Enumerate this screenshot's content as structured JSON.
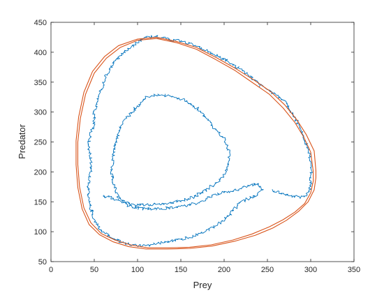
{
  "chart_data": {
    "type": "line",
    "title": "",
    "xlabel": "Prey",
    "ylabel": "Predator",
    "xlim": [
      0,
      350
    ],
    "ylim": [
      50,
      450
    ],
    "xticks": [
      0,
      50,
      100,
      150,
      200,
      250,
      300,
      350
    ],
    "yticks": [
      50,
      100,
      150,
      200,
      250,
      300,
      350,
      400,
      450
    ],
    "grid": false,
    "legend": "none",
    "series": [
      {
        "color": "#0072BD",
        "style": "noisy",
        "values": [
          [
            255,
            170
          ],
          [
            275,
            160
          ],
          [
            293,
            157
          ],
          [
            299,
            170
          ],
          [
            301,
            200
          ],
          [
            298,
            235
          ],
          [
            290,
            265
          ],
          [
            282,
            290
          ],
          [
            270,
            318
          ],
          [
            256,
            333
          ],
          [
            242,
            345
          ],
          [
            225,
            365
          ],
          [
            210,
            380
          ],
          [
            195,
            392
          ],
          [
            180,
            402
          ],
          [
            165,
            412
          ],
          [
            150,
            418
          ],
          [
            135,
            422
          ],
          [
            120,
            427
          ],
          [
            108,
            424
          ],
          [
            95,
            412
          ],
          [
            82,
            398
          ],
          [
            72,
            382
          ],
          [
            64,
            362
          ],
          [
            58,
            338
          ],
          [
            54,
            318
          ],
          [
            50,
            298
          ],
          [
            50,
            280
          ],
          [
            46,
            262
          ],
          [
            43,
            242
          ],
          [
            46,
            222
          ],
          [
            46,
            200
          ],
          [
            44,
            180
          ],
          [
            42,
            160
          ],
          [
            46,
            140
          ],
          [
            50,
            120
          ],
          [
            58,
            102
          ],
          [
            72,
            88
          ],
          [
            88,
            80
          ],
          [
            105,
            76
          ],
          [
            122,
            80
          ],
          [
            140,
            85
          ],
          [
            160,
            90
          ],
          [
            178,
            100
          ],
          [
            192,
            112
          ],
          [
            205,
            125
          ],
          [
            212,
            138
          ],
          [
            220,
            150
          ],
          [
            235,
            160
          ],
          [
            245,
            170
          ],
          [
            238,
            180
          ],
          [
            225,
            175
          ],
          [
            210,
            168
          ],
          [
            196,
            165
          ],
          [
            183,
            158
          ],
          [
            170,
            148
          ],
          [
            155,
            143
          ],
          [
            140,
            140
          ],
          [
            124,
            138
          ],
          [
            106,
            138
          ],
          [
            90,
            143
          ],
          [
            78,
            158
          ],
          [
            72,
            180
          ],
          [
            70,
            205
          ],
          [
            72,
            230
          ],
          [
            76,
            256
          ],
          [
            82,
            280
          ],
          [
            92,
            298
          ],
          [
            110,
            325
          ],
          [
            125,
            330
          ],
          [
            140,
            325
          ],
          [
            155,
            320
          ],
          [
            170,
            305
          ],
          [
            180,
            290
          ],
          [
            190,
            270
          ],
          [
            200,
            255
          ],
          [
            205,
            238
          ],
          [
            206,
            215
          ],
          [
            202,
            198
          ],
          [
            192,
            183
          ],
          [
            180,
            170
          ],
          [
            165,
            158
          ],
          [
            150,
            152
          ],
          [
            135,
            148
          ],
          [
            118,
            145
          ],
          [
            100,
            144
          ],
          [
            88,
            148
          ],
          [
            72,
            155
          ],
          [
            60,
            160
          ]
        ]
      },
      {
        "color": "#D95319",
        "style": "smooth",
        "values": [
          [
            303,
            200
          ],
          [
            300,
            233
          ],
          [
            292,
            258
          ],
          [
            282,
            282
          ],
          [
            268,
            307
          ],
          [
            252,
            330
          ],
          [
            232,
            350
          ],
          [
            212,
            370
          ],
          [
            190,
            388
          ],
          [
            168,
            405
          ],
          [
            145,
            416
          ],
          [
            122,
            423
          ],
          [
            100,
            420
          ],
          [
            80,
            408
          ],
          [
            64,
            390
          ],
          [
            50,
            365
          ],
          [
            40,
            330
          ],
          [
            34,
            290
          ],
          [
            31,
            250
          ],
          [
            31,
            212
          ],
          [
            33,
            175
          ],
          [
            38,
            140
          ],
          [
            46,
            115
          ],
          [
            58,
            97
          ],
          [
            74,
            86
          ],
          [
            92,
            78
          ],
          [
            112,
            73
          ],
          [
            135,
            73
          ],
          [
            160,
            74
          ],
          [
            185,
            78
          ],
          [
            210,
            86
          ],
          [
            232,
            96
          ],
          [
            252,
            108
          ],
          [
            268,
            120
          ],
          [
            282,
            133
          ],
          [
            293,
            147
          ],
          [
            300,
            165
          ],
          [
            303,
            185
          ],
          [
            303,
            200
          ]
        ]
      },
      {
        "color": "#D95319",
        "style": "smooth",
        "values": [
          [
            306,
            202
          ],
          [
            304,
            235
          ],
          [
            295,
            262
          ],
          [
            284,
            287
          ],
          [
            270,
            312
          ],
          [
            254,
            334
          ],
          [
            234,
            354
          ],
          [
            213,
            373
          ],
          [
            191,
            391
          ],
          [
            168,
            408
          ],
          [
            145,
            418
          ],
          [
            122,
            425
          ],
          [
            100,
            422
          ],
          [
            78,
            411
          ],
          [
            62,
            393
          ],
          [
            48,
            368
          ],
          [
            38,
            333
          ],
          [
            32,
            292
          ],
          [
            29,
            252
          ],
          [
            29,
            212
          ],
          [
            31,
            174
          ],
          [
            36,
            138
          ],
          [
            44,
            112
          ],
          [
            56,
            95
          ],
          [
            72,
            83
          ],
          [
            90,
            75
          ],
          [
            110,
            71
          ],
          [
            134,
            71
          ],
          [
            160,
            72
          ],
          [
            186,
            76
          ],
          [
            212,
            84
          ],
          [
            236,
            94
          ],
          [
            256,
            106
          ],
          [
            272,
            119
          ],
          [
            286,
            134
          ],
          [
            297,
            150
          ],
          [
            304,
            170
          ],
          [
            306,
            190
          ],
          [
            306,
            202
          ]
        ]
      }
    ]
  }
}
